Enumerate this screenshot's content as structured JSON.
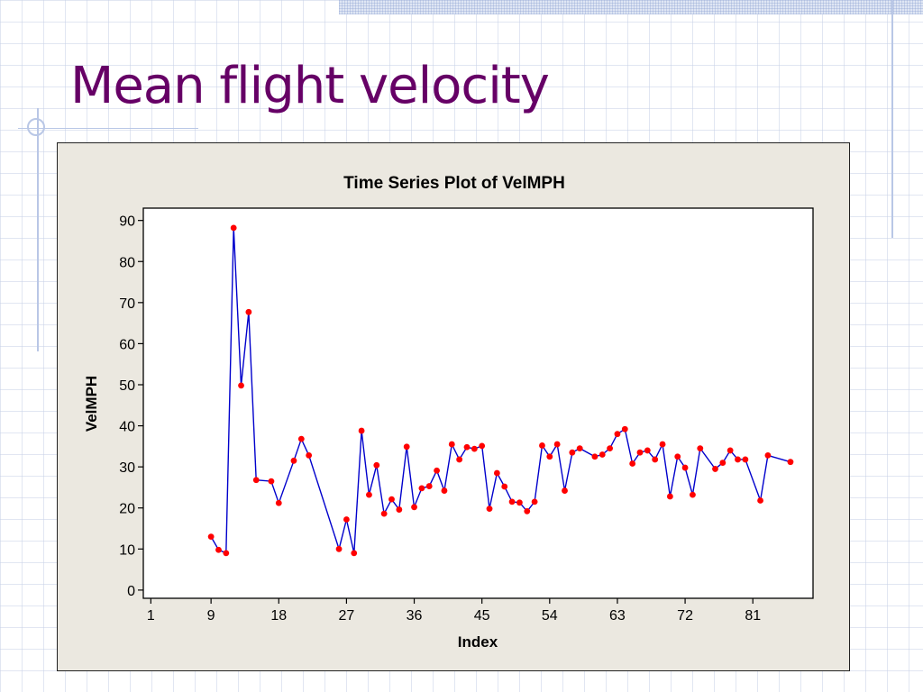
{
  "slide": {
    "title": "Mean flight velocity"
  },
  "colors": {
    "title": "#660066",
    "line": "#0000cc",
    "marker": "#ff0000",
    "frame": "#ebe8e0",
    "plot_bg": "#ffffff"
  },
  "chart_data": {
    "type": "line",
    "title": "Time Series Plot of VelMPH",
    "xlabel": "Index",
    "ylabel": "VelMPH",
    "xlim": [
      0,
      89
    ],
    "ylim": [
      -2,
      93
    ],
    "x_ticks": [
      1,
      9,
      18,
      27,
      36,
      45,
      54,
      63,
      72,
      81
    ],
    "y_ticks": [
      0,
      10,
      20,
      30,
      40,
      50,
      60,
      70,
      80,
      90
    ],
    "grid": false,
    "series": [
      {
        "values": [
          null,
          null,
          null,
          null,
          null,
          null,
          null,
          null,
          13.0,
          9.8,
          9.0,
          88.2,
          49.8,
          67.7,
          26.8,
          null,
          26.5,
          21.2,
          null,
          31.5,
          36.8,
          32.8,
          null,
          null,
          null,
          10.0,
          17.2,
          9.0,
          38.8,
          23.2,
          30.4,
          18.6,
          22.1,
          19.6,
          34.9,
          20.2,
          24.8,
          25.3,
          29.1,
          24.2,
          35.5,
          31.8,
          34.8,
          34.4,
          35.1,
          19.8,
          28.5,
          25.2,
          21.5,
          21.3,
          19.2,
          21.5,
          35.2,
          32.5,
          35.5,
          24.2,
          33.5,
          34.5,
          null,
          32.5,
          33.0,
          34.5,
          38.0,
          39.2,
          30.8,
          33.5,
          34.0,
          31.8,
          35.5,
          22.8,
          32.5,
          29.8,
          23.2,
          34.5,
          null,
          29.5,
          31.0,
          34.0,
          31.8,
          31.8,
          null,
          21.8,
          32.8,
          null,
          null,
          31.2
        ]
      }
    ]
  }
}
